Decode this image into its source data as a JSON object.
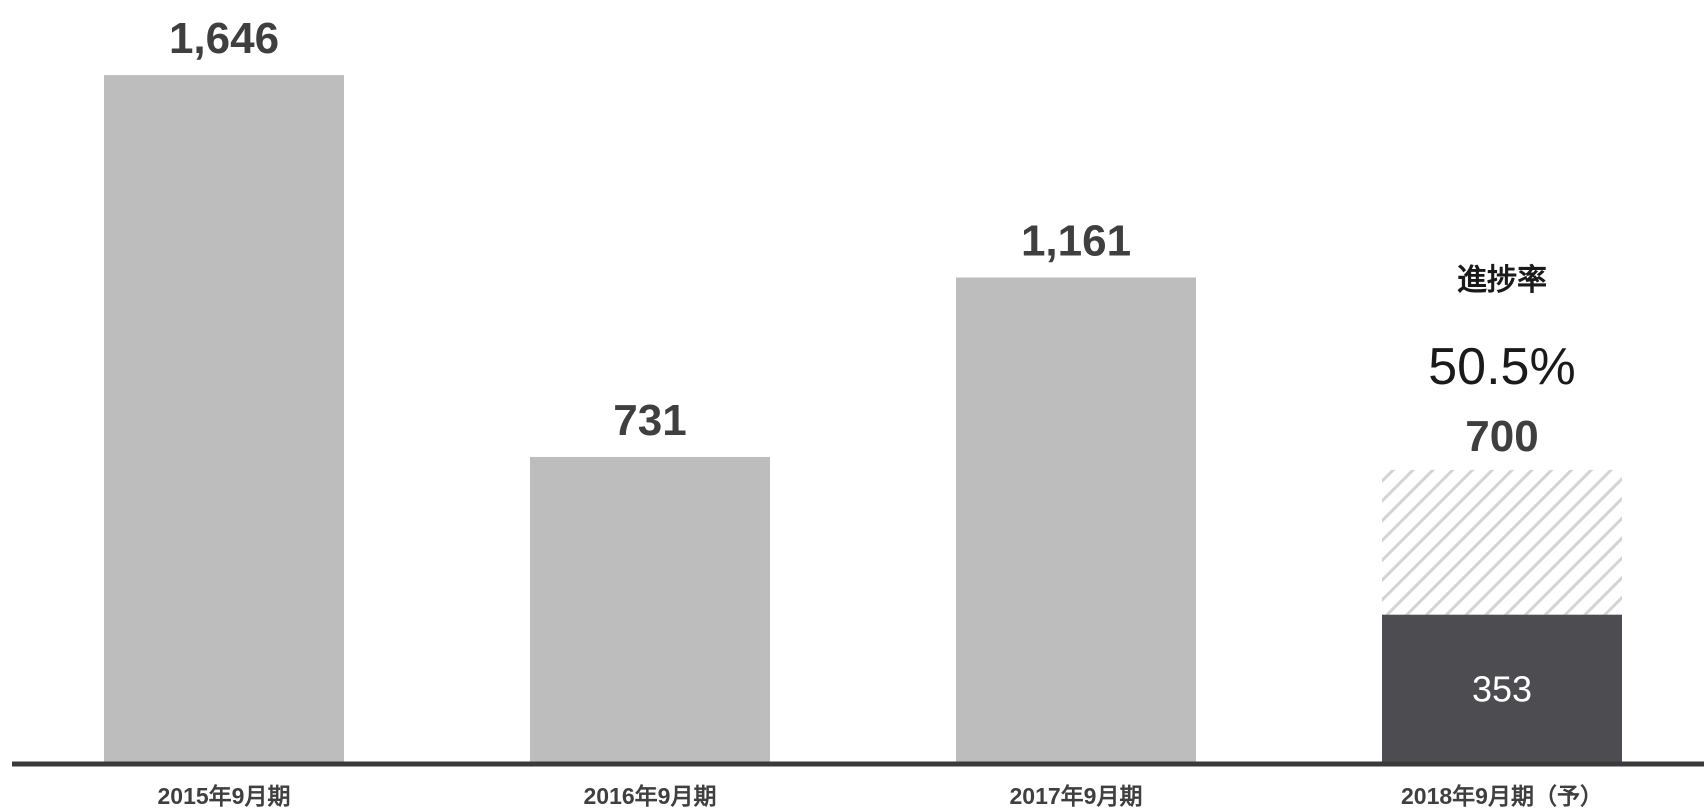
{
  "chart_data": {
    "type": "bar",
    "title": "",
    "xlabel": "",
    "ylabel": "",
    "categories": [
      "2015年9月期",
      "2016年9月期",
      "2017年9月期",
      "2018年9月期（予）"
    ],
    "values": [
      1646,
      731,
      1161,
      700
    ],
    "value_labels": [
      "1,646",
      "731",
      "1,161",
      "700"
    ],
    "forecast": {
      "category": "2018年9月期（予）",
      "target": 700,
      "target_label": "700",
      "achieved": 353,
      "achieved_label": "353",
      "progress_title": "進捗率",
      "progress_value": "50.5%"
    },
    "ylim": [
      0,
      1700
    ],
    "grid": false,
    "legend": "none",
    "colors": {
      "bar": "#bdbdbd",
      "achieved": "#4d4c51",
      "hatch_line": "#d4d4d4",
      "axis": "#3a3a3a",
      "label": "#3f3f3f"
    }
  }
}
